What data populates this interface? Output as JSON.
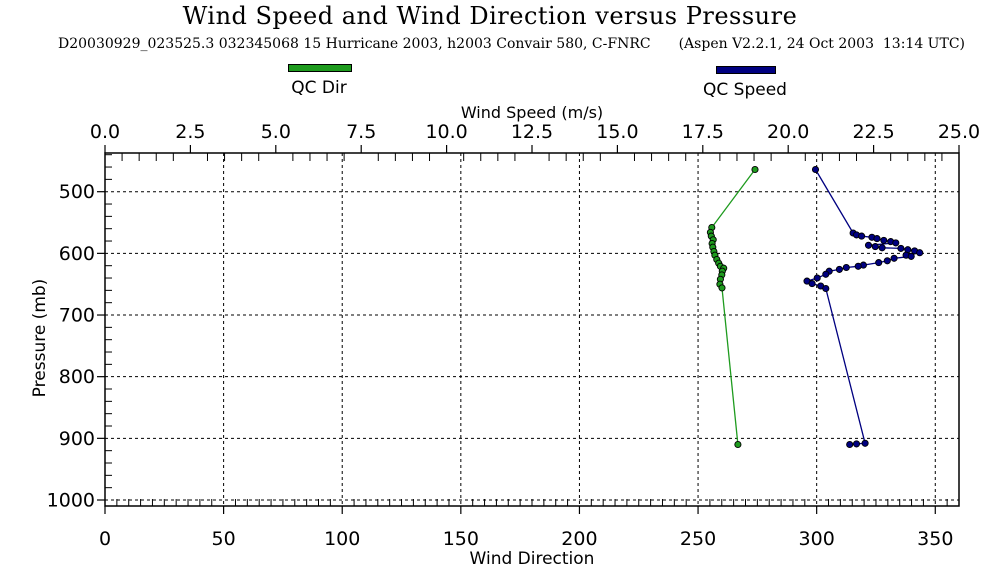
{
  "header": {
    "title": "Wind Speed and Wind Direction versus Pressure",
    "subtitle_left": "D20030929_023525.3 032345068 15 Hurricane 2003, h2003 Convair 580, C-FNRC",
    "subtitle_right": "(Aspen V2.2.1, 24 Oct 2003  13:14 UTC)"
  },
  "legend": [
    {
      "label": "QC Dir",
      "color": "#1e9b1e"
    },
    {
      "label": "QC Speed",
      "color": "#000080"
    }
  ],
  "chart_data": {
    "type": "line",
    "title": "Wind Speed and Wind Direction versus Pressure",
    "grid": "dashed",
    "top_axis": {
      "label": "Wind Speed (m/s)",
      "min": 0,
      "max": 25,
      "major": 2.5,
      "minor": 0.5,
      "tick_values": [
        0,
        2.5,
        5,
        7.5,
        10,
        12.5,
        15,
        17.5,
        20,
        22.5,
        25
      ],
      "tick_labels": [
        "0.0",
        "2.5",
        "5.0",
        "7.5",
        "10.0",
        "12.5",
        "15.0",
        "17.5",
        "20.0",
        "22.5",
        "25.0"
      ]
    },
    "bottom_axis": {
      "label": "Wind Direction",
      "min": 0,
      "max": 360,
      "major": 50,
      "minor": 5,
      "tick_values": [
        0,
        50,
        100,
        150,
        200,
        250,
        300,
        350
      ],
      "tick_labels": [
        "0",
        "50",
        "100",
        "150",
        "200",
        "250",
        "300",
        "350"
      ]
    },
    "left_axis": {
      "label": "Pressure (mb)",
      "min": 437,
      "max": 1010,
      "major": 100,
      "minor": 20,
      "tick_values": [
        500,
        600,
        700,
        800,
        900,
        1000
      ],
      "tick_labels": [
        "500",
        "600",
        "700",
        "800",
        "900",
        "1000"
      ]
    },
    "series": [
      {
        "name": "QC Dir",
        "color": "#1e9b1e",
        "x_axis": "bottom",
        "x_unit": "deg",
        "y_unit": "mb",
        "points": [
          [
            274.0,
            464
          ],
          [
            255.8,
            558
          ],
          [
            255.2,
            566
          ],
          [
            255.6,
            572
          ],
          [
            256.4,
            578
          ],
          [
            255.9,
            584
          ],
          [
            256.2,
            590
          ],
          [
            256.7,
            597
          ],
          [
            257.1,
            603
          ],
          [
            257.9,
            610
          ],
          [
            258.7,
            616
          ],
          [
            259.4,
            621
          ],
          [
            260.8,
            624
          ],
          [
            260.2,
            629
          ],
          [
            260.0,
            635
          ],
          [
            259.4,
            642
          ],
          [
            259.2,
            650
          ],
          [
            260.1,
            656
          ],
          [
            266.8,
            910
          ]
        ]
      },
      {
        "name": "QC Speed",
        "color": "#000080",
        "x_axis": "top",
        "x_unit": "m/s",
        "y_unit": "mb",
        "points": [
          [
            20.8,
            464
          ],
          [
            21.9,
            567
          ],
          [
            22.0,
            570
          ],
          [
            22.15,
            572
          ],
          [
            22.45,
            574
          ],
          [
            22.6,
            576
          ],
          [
            22.8,
            579
          ],
          [
            23.0,
            581
          ],
          [
            23.15,
            583
          ],
          [
            22.35,
            587
          ],
          [
            22.55,
            589
          ],
          [
            22.75,
            591
          ],
          [
            23.3,
            592
          ],
          [
            23.5,
            594
          ],
          [
            23.7,
            596
          ],
          [
            23.85,
            599
          ],
          [
            23.45,
            603
          ],
          [
            23.6,
            605
          ],
          [
            23.1,
            608
          ],
          [
            22.9,
            612
          ],
          [
            22.65,
            615
          ],
          [
            22.2,
            619
          ],
          [
            22.05,
            621
          ],
          [
            21.7,
            623
          ],
          [
            21.5,
            626
          ],
          [
            21.2,
            629
          ],
          [
            21.1,
            634
          ],
          [
            20.85,
            640
          ],
          [
            20.55,
            645
          ],
          [
            20.7,
            649
          ],
          [
            20.95,
            653
          ],
          [
            21.1,
            657
          ],
          [
            22.25,
            908
          ],
          [
            22.0,
            909
          ],
          [
            21.8,
            910
          ]
        ]
      }
    ]
  }
}
